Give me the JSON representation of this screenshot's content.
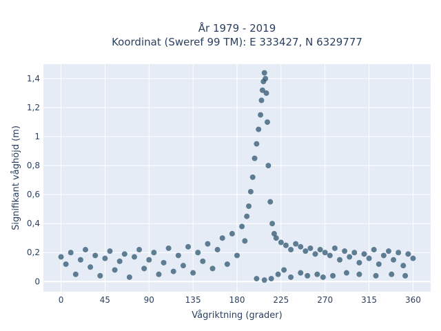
{
  "chart_data": {
    "type": "scatter",
    "title_line1": "År 1979 - 2019",
    "title_line2": "Koordinat (Sweref 99 TM): E 333427, N 6329777",
    "xlabel": "Vågriktning (grader)",
    "ylabel": "Signifikant våghöjd (m)",
    "xlim": [
      -18,
      378
    ],
    "ylim": [
      -0.07,
      1.5
    ],
    "x_ticks": [
      0,
      45,
      90,
      135,
      180,
      225,
      270,
      315,
      360
    ],
    "x_tick_labels": [
      "0",
      "45",
      "90",
      "135",
      "180",
      "225",
      "270",
      "315",
      "360"
    ],
    "y_ticks": [
      0,
      0.2,
      0.4,
      0.6,
      0.8,
      1.0,
      1.2,
      1.4
    ],
    "y_tick_labels": [
      "0",
      "0,2",
      "0,4",
      "0,6",
      "0,8",
      "1",
      "1,2",
      "1,4"
    ],
    "grid": true,
    "background_color": "#e5ecf6",
    "marker_color": "#2f5770",
    "series": [
      {
        "values_note": "",
        "points": [
          [
            0,
            0.17
          ],
          [
            5,
            0.12
          ],
          [
            10,
            0.2
          ],
          [
            15,
            0.05
          ],
          [
            20,
            0.15
          ],
          [
            25,
            0.22
          ],
          [
            30,
            0.1
          ],
          [
            35,
            0.18
          ],
          [
            40,
            0.04
          ],
          [
            45,
            0.16
          ],
          [
            50,
            0.21
          ],
          [
            55,
            0.08
          ],
          [
            60,
            0.14
          ],
          [
            65,
            0.19
          ],
          [
            70,
            0.03
          ],
          [
            75,
            0.17
          ],
          [
            80,
            0.22
          ],
          [
            85,
            0.09
          ],
          [
            90,
            0.15
          ],
          [
            95,
            0.2
          ],
          [
            100,
            0.05
          ],
          [
            105,
            0.13
          ],
          [
            110,
            0.23
          ],
          [
            115,
            0.07
          ],
          [
            120,
            0.18
          ],
          [
            125,
            0.11
          ],
          [
            130,
            0.24
          ],
          [
            135,
            0.06
          ],
          [
            140,
            0.2
          ],
          [
            145,
            0.14
          ],
          [
            150,
            0.26
          ],
          [
            155,
            0.09
          ],
          [
            160,
            0.22
          ],
          [
            165,
            0.3
          ],
          [
            170,
            0.12
          ],
          [
            175,
            0.33
          ],
          [
            180,
            0.18
          ],
          [
            185,
            0.38
          ],
          [
            188,
            0.28
          ],
          [
            190,
            0.45
          ],
          [
            192,
            0.52
          ],
          [
            194,
            0.62
          ],
          [
            196,
            0.72
          ],
          [
            198,
            0.85
          ],
          [
            200,
            0.95
          ],
          [
            202,
            1.05
          ],
          [
            204,
            1.15
          ],
          [
            205,
            1.25
          ],
          [
            206,
            1.32
          ],
          [
            207,
            1.38
          ],
          [
            208,
            1.44
          ],
          [
            209,
            1.4
          ],
          [
            210,
            1.3
          ],
          [
            211,
            1.1
          ],
          [
            212,
            0.8
          ],
          [
            214,
            0.55
          ],
          [
            216,
            0.4
          ],
          [
            218,
            0.33
          ],
          [
            220,
            0.3
          ],
          [
            225,
            0.27
          ],
          [
            230,
            0.25
          ],
          [
            235,
            0.22
          ],
          [
            240,
            0.26
          ],
          [
            245,
            0.24
          ],
          [
            250,
            0.21
          ],
          [
            255,
            0.23
          ],
          [
            260,
            0.19
          ],
          [
            265,
            0.22
          ],
          [
            270,
            0.2
          ],
          [
            275,
            0.18
          ],
          [
            280,
            0.23
          ],
          [
            285,
            0.15
          ],
          [
            290,
            0.21
          ],
          [
            295,
            0.17
          ],
          [
            300,
            0.2
          ],
          [
            305,
            0.13
          ],
          [
            310,
            0.19
          ],
          [
            315,
            0.16
          ],
          [
            320,
            0.22
          ],
          [
            325,
            0.12
          ],
          [
            330,
            0.18
          ],
          [
            335,
            0.21
          ],
          [
            340,
            0.15
          ],
          [
            345,
            0.2
          ],
          [
            350,
            0.11
          ],
          [
            355,
            0.19
          ],
          [
            360,
            0.16
          ],
          [
            222,
            0.05
          ],
          [
            228,
            0.08
          ],
          [
            235,
            0.03
          ],
          [
            245,
            0.06
          ],
          [
            252,
            0.04
          ],
          [
            262,
            0.05
          ],
          [
            268,
            0.03
          ],
          [
            278,
            0.04
          ],
          [
            292,
            0.06
          ],
          [
            305,
            0.05
          ],
          [
            322,
            0.04
          ],
          [
            338,
            0.05
          ],
          [
            352,
            0.04
          ],
          [
            208,
            0.01
          ],
          [
            200,
            0.02
          ],
          [
            215,
            0.02
          ]
        ]
      }
    ]
  }
}
